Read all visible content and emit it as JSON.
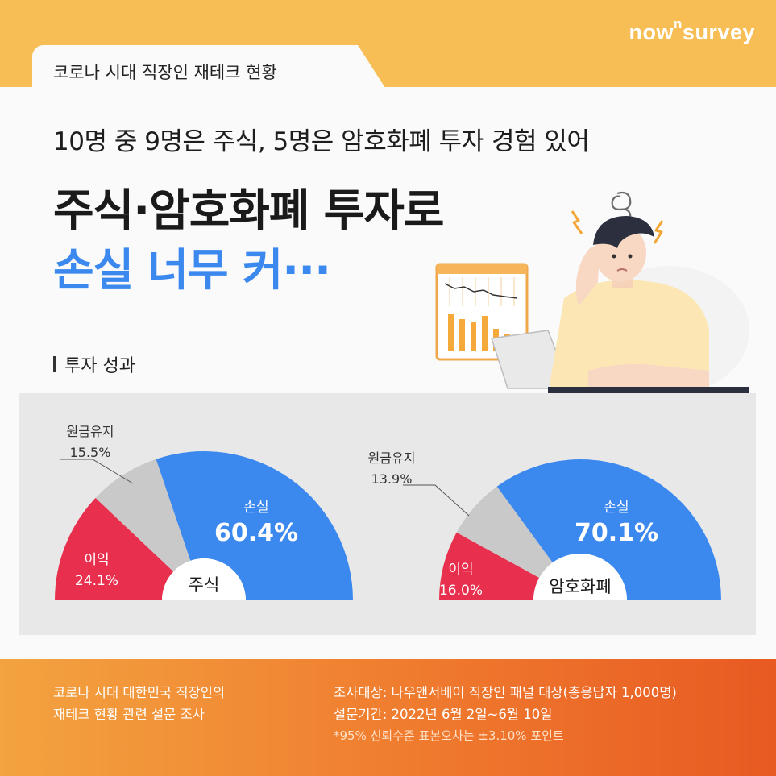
{
  "brand": {
    "name": "now",
    "sup": "n",
    "suffix": "survey"
  },
  "tab_label": "코로나 시대 직장인 재테크 현황",
  "subtitle": "10명 중 9명은 주식, 5명은 암호화폐 투자 경험 있어",
  "headline": {
    "line1": "주식·암호화폐 투자로",
    "line2": "손실 너무 커···"
  },
  "section_label": "투자 성과",
  "colors": {
    "loss": "#3b88ee",
    "profit": "#e8304e",
    "keep": "#c9c9c9",
    "orange": "#ef7a2e",
    "yellow": "#f8be56"
  },
  "chart_data": [
    {
      "type": "pie",
      "subtype": "half-donut",
      "center_label": "주식",
      "slices": [
        {
          "label": "이익",
          "value": 24.1,
          "display": "24.1%",
          "color": "#e8304e"
        },
        {
          "label": "원금유지",
          "value": 15.5,
          "display": "15.5%",
          "color": "#c9c9c9"
        },
        {
          "label": "손실",
          "value": 60.4,
          "display": "60.4%",
          "color": "#3b88ee"
        }
      ]
    },
    {
      "type": "pie",
      "subtype": "half-donut",
      "center_label": "암호화폐",
      "slices": [
        {
          "label": "이익",
          "value": 16.0,
          "display": "16.0%",
          "color": "#e8304e"
        },
        {
          "label": "원금유지",
          "value": 13.9,
          "display": "13.9%",
          "color": "#c9c9c9"
        },
        {
          "label": "손실",
          "value": 70.1,
          "display": "70.1%",
          "color": "#3b88ee"
        }
      ]
    }
  ],
  "footer": {
    "left_line1": "코로나 시대 대한민국 직장인의",
    "left_line2": "재테크 현황 관련 설문 조사",
    "right_line1": "조사대상: 나우앤서베이 직장인 패널 대상(총응답자 1,000명)",
    "right_line2": "설문기간: 2022년 6월 2일~6월 10일",
    "note": "*95% 신뢰수준 표본오차는 ±3.10% 포인트"
  }
}
